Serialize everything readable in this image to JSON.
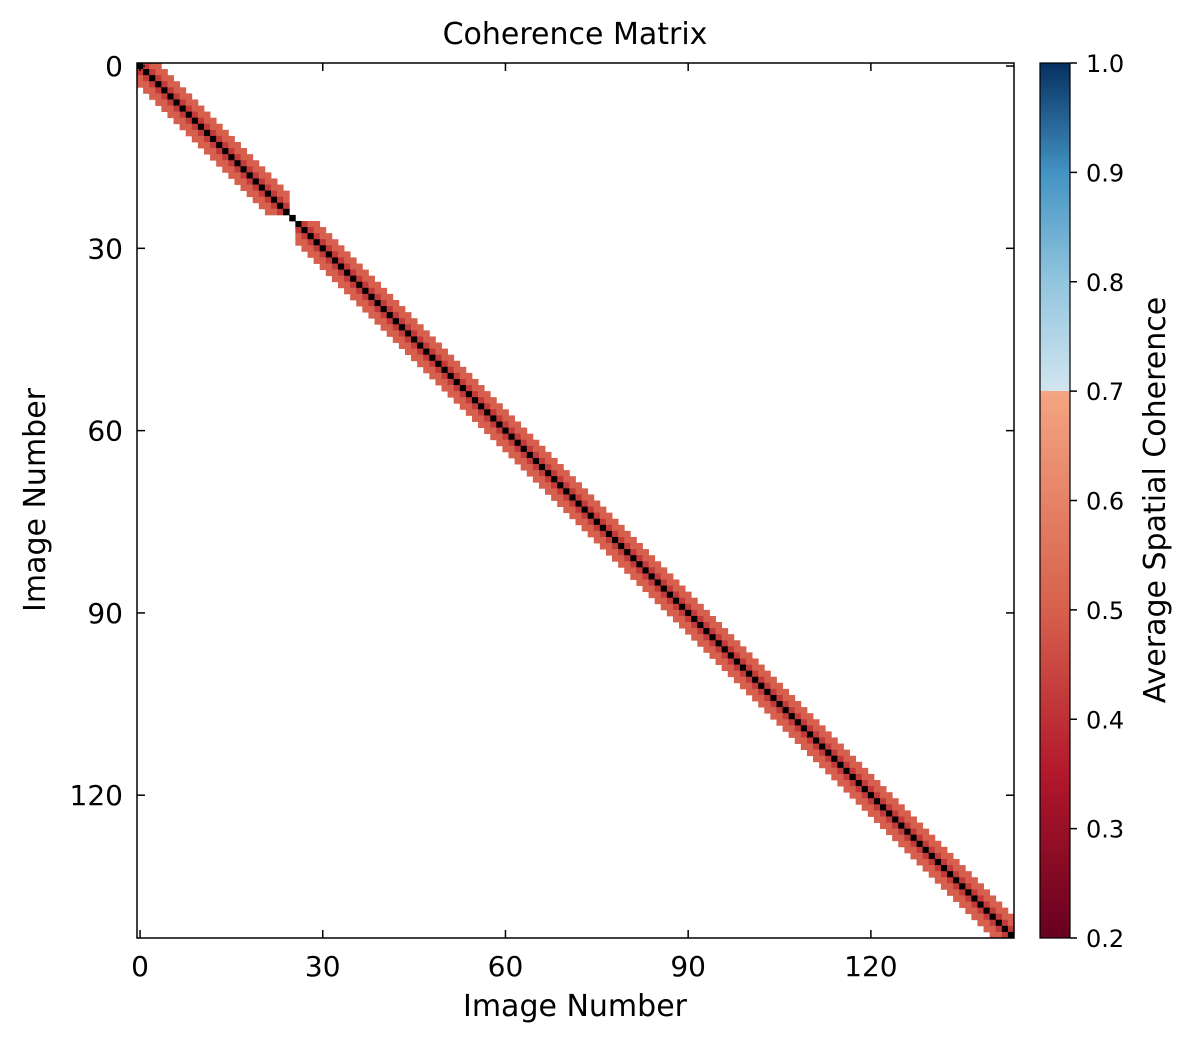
{
  "chart_data": {
    "type": "heatmap",
    "title": "Coherence Matrix",
    "xlabel": "Image Number",
    "ylabel": "Image Number",
    "n": 144,
    "xticks": [
      0,
      30,
      60,
      90,
      120
    ],
    "yticks": [
      0,
      30,
      60,
      90,
      120
    ],
    "colorbar": {
      "label": "Average Spatial Coherence",
      "range": [
        0.2,
        1.0
      ],
      "ticks": [
        "0.2",
        "0.3",
        "0.4",
        "0.5",
        "0.6",
        "0.7",
        "0.8",
        "0.9",
        "1.0"
      ],
      "colormap": "RdBu",
      "stops": [
        {
          "v": 0.2,
          "color": "#67001f"
        },
        {
          "v": 0.35,
          "color": "#b2182b"
        },
        {
          "v": 0.5,
          "color": "#d6604d"
        },
        {
          "v": 0.7,
          "color": "#f4a582"
        },
        {
          "v": 0.7,
          "color": "#d1e5f0"
        },
        {
          "v": 0.8,
          "color": "#92c5de"
        },
        {
          "v": 0.9,
          "color": "#4393c3"
        },
        {
          "v": 1.0,
          "color": "#053061"
        }
      ]
    },
    "diagonal_value": 1.0,
    "band_half_width": 3,
    "band_value": 0.5,
    "band_near_value": 0.42,
    "segment_breaks": [
      25
    ],
    "diagonal_color": "#000000"
  }
}
